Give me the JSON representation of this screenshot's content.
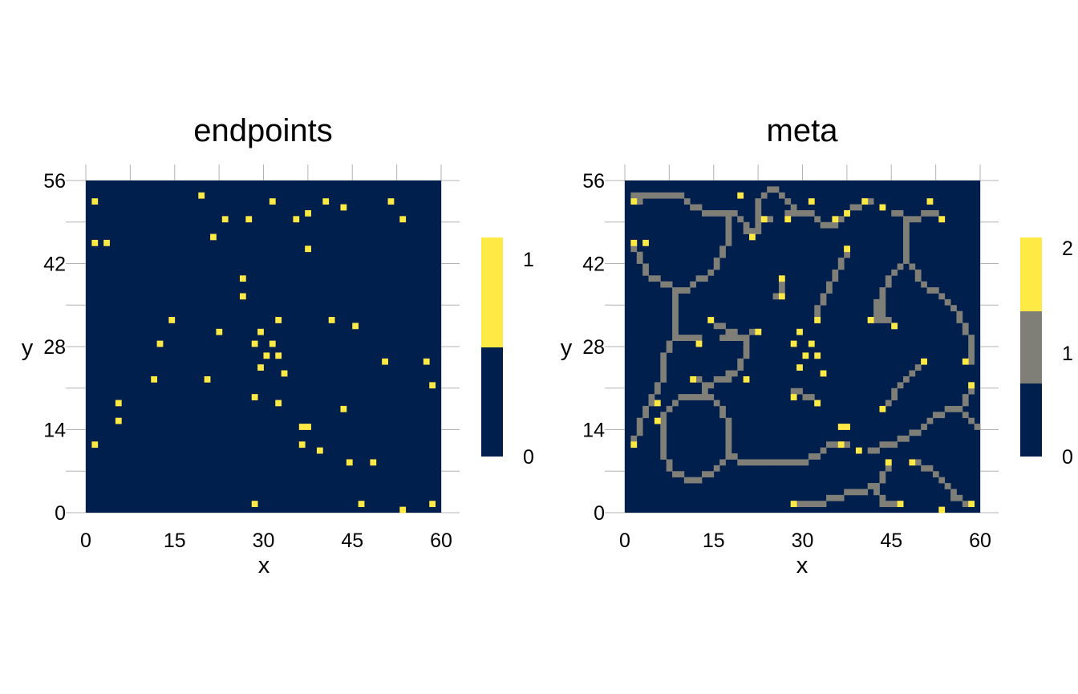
{
  "colors": {
    "low": "#001f4d",
    "mid": "#7f7f78",
    "high": "#ffe945",
    "grid": "#b3b3b3"
  },
  "chart_data": [
    {
      "type": "heatmap",
      "title": "endpoints",
      "xlabel": "x",
      "ylabel": "y",
      "xlim": [
        0,
        60
      ],
      "ylim": [
        0,
        56
      ],
      "xticks": [
        "0",
        "15",
        "30",
        "45",
        "60"
      ],
      "yticks": [
        "0",
        "14",
        "28",
        "42",
        "56"
      ],
      "legend": {
        "position": "right",
        "levels": [
          0,
          1
        ],
        "labels": [
          "0",
          "1"
        ]
      },
      "background_value": 0,
      "cells_value_1": [
        [
          1,
          52
        ],
        [
          19,
          53
        ],
        [
          31,
          52
        ],
        [
          40,
          52
        ],
        [
          43,
          51
        ],
        [
          51,
          52
        ],
        [
          23,
          49
        ],
        [
          27,
          49
        ],
        [
          35,
          49
        ],
        [
          37,
          50
        ],
        [
          53,
          49
        ],
        [
          1,
          45
        ],
        [
          3,
          45
        ],
        [
          21,
          46
        ],
        [
          37,
          44
        ],
        [
          26,
          39
        ],
        [
          26,
          36
        ],
        [
          14,
          32
        ],
        [
          32,
          32
        ],
        [
          41,
          32
        ],
        [
          45,
          31
        ],
        [
          22,
          30
        ],
        [
          29,
          30
        ],
        [
          12,
          28
        ],
        [
          28,
          28
        ],
        [
          31,
          28
        ],
        [
          30,
          26
        ],
        [
          32,
          26
        ],
        [
          50,
          25
        ],
        [
          57,
          25
        ],
        [
          29,
          24
        ],
        [
          33,
          23
        ],
        [
          11,
          22
        ],
        [
          20,
          22
        ],
        [
          58,
          21
        ],
        [
          28,
          19
        ],
        [
          5,
          18
        ],
        [
          32,
          18
        ],
        [
          43,
          17
        ],
        [
          5,
          15
        ],
        [
          36,
          14
        ],
        [
          37,
          14
        ],
        [
          1,
          11
        ],
        [
          36,
          11
        ],
        [
          39,
          10
        ],
        [
          44,
          8
        ],
        [
          48,
          8
        ],
        [
          28,
          1
        ],
        [
          46,
          1
        ],
        [
          58,
          1
        ],
        [
          53,
          0
        ]
      ]
    },
    {
      "type": "heatmap",
      "title": "meta",
      "xlabel": "x",
      "ylabel": "y",
      "xlim": [
        0,
        60
      ],
      "ylim": [
        0,
        56
      ],
      "xticks": [
        "0",
        "15",
        "30",
        "45",
        "60"
      ],
      "yticks": [
        "0",
        "14",
        "28",
        "42",
        "56"
      ],
      "legend": {
        "position": "right",
        "levels": [
          0,
          1,
          2
        ],
        "labels": [
          "0",
          "1",
          "2"
        ]
      },
      "background_value": 0,
      "paths_value_1": [
        [
          [
            1,
            53
          ],
          [
            8,
            53
          ],
          [
            10,
            52
          ],
          [
            13,
            50
          ],
          [
            17,
            50
          ],
          [
            19,
            49
          ],
          [
            20,
            47
          ],
          [
            22,
            47
          ],
          [
            22,
            49
          ],
          [
            24,
            49
          ]
        ],
        [
          [
            2,
            52
          ],
          [
            1,
            53
          ]
        ],
        [
          [
            17,
            50
          ],
          [
            17,
            46
          ],
          [
            16,
            43
          ],
          [
            14,
            40
          ],
          [
            10,
            37
          ]
        ],
        [
          [
            1,
            45
          ],
          [
            2,
            42
          ],
          [
            4,
            39
          ],
          [
            6,
            38
          ],
          [
            8,
            37
          ],
          [
            10,
            37
          ]
        ],
        [
          [
            8,
            37
          ],
          [
            8,
            29
          ],
          [
            12,
            29
          ]
        ],
        [
          [
            8,
            29
          ],
          [
            6,
            26
          ],
          [
            6,
            22
          ],
          [
            4,
            19
          ],
          [
            3,
            17
          ],
          [
            2,
            14
          ],
          [
            1,
            12
          ]
        ],
        [
          [
            22,
            49
          ],
          [
            22,
            52
          ],
          [
            24,
            54
          ],
          [
            26,
            53
          ],
          [
            29,
            50
          ],
          [
            30,
            50
          ]
        ],
        [
          [
            27,
            50
          ],
          [
            31,
            50
          ],
          [
            33,
            48
          ],
          [
            35,
            48
          ],
          [
            37,
            50
          ],
          [
            39,
            51
          ],
          [
            41,
            52
          ]
        ],
        [
          [
            45,
            50
          ],
          [
            47,
            49
          ],
          [
            52,
            50
          ],
          [
            53,
            49
          ]
        ],
        [
          [
            47,
            49
          ],
          [
            47,
            42
          ],
          [
            50,
            38
          ],
          [
            53,
            36
          ],
          [
            56,
            33
          ],
          [
            58,
            28
          ],
          [
            58,
            25
          ]
        ],
        [
          [
            47,
            42
          ],
          [
            44,
            39
          ],
          [
            42,
            35
          ],
          [
            43,
            32
          ],
          [
            45,
            31
          ]
        ],
        [
          [
            43,
            35
          ],
          [
            42,
            32
          ],
          [
            41,
            32
          ]
        ],
        [
          [
            37,
            44
          ],
          [
            36,
            41
          ],
          [
            34,
            38
          ],
          [
            32,
            34
          ],
          [
            32,
            32
          ]
        ],
        [
          [
            26,
            38
          ],
          [
            25,
            36
          ]
        ],
        [
          [
            14,
            32
          ],
          [
            17,
            30
          ],
          [
            20,
            29
          ],
          [
            22,
            30
          ]
        ],
        [
          [
            16,
            29
          ],
          [
            20,
            29
          ],
          [
            20,
            26
          ],
          [
            18,
            23
          ],
          [
            17,
            23
          ]
        ],
        [
          [
            12,
            22
          ],
          [
            13,
            21
          ],
          [
            17,
            22
          ],
          [
            18,
            23
          ]
        ],
        [
          [
            13,
            21
          ],
          [
            13,
            19
          ]
        ],
        [
          [
            9,
            19
          ],
          [
            14,
            19
          ],
          [
            16,
            17
          ],
          [
            17,
            13
          ],
          [
            17,
            9
          ],
          [
            20,
            8
          ],
          [
            30,
            8
          ],
          [
            33,
            10
          ],
          [
            35,
            11
          ],
          [
            37,
            11
          ]
        ],
        [
          [
            9,
            19
          ],
          [
            6,
            16
          ],
          [
            6,
            9
          ],
          [
            8,
            6
          ],
          [
            11,
            5
          ],
          [
            14,
            6
          ],
          [
            16,
            8
          ],
          [
            17,
            9
          ]
        ],
        [
          [
            28,
            20
          ],
          [
            30,
            19
          ],
          [
            32,
            18
          ]
        ],
        [
          [
            44,
            18
          ],
          [
            46,
            21
          ],
          [
            48,
            23
          ],
          [
            50,
            25
          ]
        ],
        [
          [
            41,
            10
          ],
          [
            44,
            11
          ],
          [
            47,
            12
          ],
          [
            50,
            14
          ],
          [
            52,
            16
          ],
          [
            56,
            17
          ],
          [
            57,
            19
          ],
          [
            58,
            21
          ]
        ],
        [
          [
            56,
            17
          ],
          [
            59,
            14
          ]
        ],
        [
          [
            44,
            8
          ],
          [
            42,
            4
          ],
          [
            39,
            3
          ],
          [
            35,
            2
          ],
          [
            32,
            1
          ],
          [
            28,
            1
          ]
        ],
        [
          [
            42,
            3
          ],
          [
            43,
            1
          ],
          [
            46,
            1
          ]
        ],
        [
          [
            49,
            8
          ],
          [
            52,
            6
          ],
          [
            54,
            4
          ],
          [
            55,
            2
          ],
          [
            58,
            1
          ]
        ]
      ],
      "cells_value_2": [
        [
          1,
          52
        ],
        [
          19,
          53
        ],
        [
          31,
          52
        ],
        [
          40,
          52
        ],
        [
          43,
          51
        ],
        [
          51,
          52
        ],
        [
          23,
          49
        ],
        [
          27,
          49
        ],
        [
          35,
          49
        ],
        [
          37,
          50
        ],
        [
          53,
          49
        ],
        [
          1,
          45
        ],
        [
          3,
          45
        ],
        [
          21,
          46
        ],
        [
          37,
          44
        ],
        [
          26,
          39
        ],
        [
          26,
          36
        ],
        [
          14,
          32
        ],
        [
          32,
          32
        ],
        [
          41,
          32
        ],
        [
          45,
          31
        ],
        [
          22,
          30
        ],
        [
          29,
          30
        ],
        [
          12,
          28
        ],
        [
          28,
          28
        ],
        [
          31,
          28
        ],
        [
          30,
          26
        ],
        [
          32,
          26
        ],
        [
          50,
          25
        ],
        [
          57,
          25
        ],
        [
          29,
          24
        ],
        [
          33,
          23
        ],
        [
          11,
          22
        ],
        [
          20,
          22
        ],
        [
          58,
          21
        ],
        [
          28,
          19
        ],
        [
          5,
          18
        ],
        [
          32,
          18
        ],
        [
          43,
          17
        ],
        [
          5,
          15
        ],
        [
          36,
          14
        ],
        [
          37,
          14
        ],
        [
          1,
          11
        ],
        [
          36,
          11
        ],
        [
          39,
          10
        ],
        [
          44,
          8
        ],
        [
          48,
          8
        ],
        [
          28,
          1
        ],
        [
          46,
          1
        ],
        [
          58,
          1
        ],
        [
          53,
          0
        ]
      ]
    }
  ]
}
